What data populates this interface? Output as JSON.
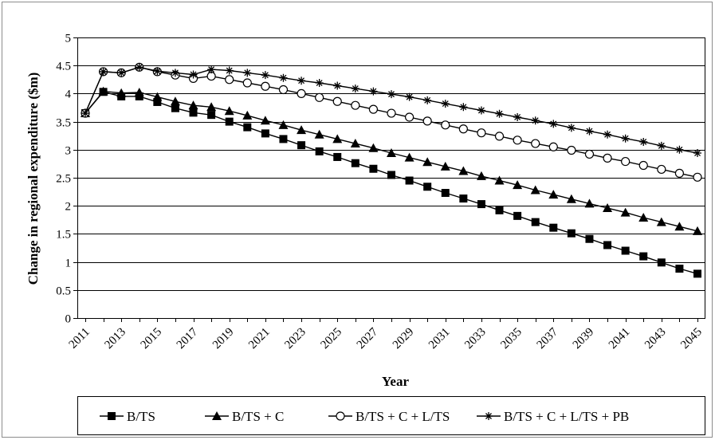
{
  "chart_data": {
    "type": "line",
    "xlabel": "Year",
    "ylabel": "Change in regional expenditure ($m)",
    "ylim": [
      0,
      5
    ],
    "yticks": [
      "0",
      "0.5",
      "1",
      "1.5",
      "2",
      "2.5",
      "3",
      "3.5",
      "4",
      "4.5",
      "5"
    ],
    "xtick_labels": [
      "2011",
      "2013",
      "2015",
      "2017",
      "2019",
      "2021",
      "2023",
      "2025",
      "2027",
      "2029",
      "2031",
      "2033",
      "2035",
      "2037",
      "2039",
      "2041",
      "2043",
      "2045"
    ],
    "grid": "horizontal",
    "legend_position": "bottom",
    "x": [
      2011,
      2012,
      2013,
      2014,
      2015,
      2016,
      2017,
      2018,
      2019,
      2020,
      2021,
      2022,
      2023,
      2024,
      2025,
      2026,
      2027,
      2028,
      2029,
      2030,
      2031,
      2032,
      2033,
      2034,
      2035,
      2036,
      2037,
      2038,
      2039,
      2040,
      2041,
      2042,
      2043,
      2044,
      2045
    ],
    "series": [
      {
        "name": "B/TS",
        "marker": "filled-square",
        "values": [
          3.65,
          4.03,
          3.95,
          3.95,
          3.85,
          3.74,
          3.66,
          3.62,
          3.5,
          3.4,
          3.29,
          3.19,
          3.08,
          2.97,
          2.87,
          2.76,
          2.66,
          2.55,
          2.45,
          2.34,
          2.23,
          2.13,
          2.03,
          1.92,
          1.82,
          1.71,
          1.61,
          1.51,
          1.41,
          1.3,
          1.2,
          1.1,
          0.99,
          0.88,
          0.79
        ]
      },
      {
        "name": "B/TS + C",
        "marker": "filled-triangle",
        "values": [
          3.65,
          4.04,
          4.01,
          4.02,
          3.94,
          3.86,
          3.79,
          3.76,
          3.69,
          3.61,
          3.52,
          3.44,
          3.35,
          3.27,
          3.19,
          3.11,
          3.03,
          2.94,
          2.86,
          2.78,
          2.7,
          2.62,
          2.53,
          2.45,
          2.37,
          2.28,
          2.2,
          2.12,
          2.04,
          1.96,
          1.88,
          1.79,
          1.71,
          1.63,
          1.55
        ]
      },
      {
        "name": "B/TS + C + L/TS",
        "marker": "open-circle",
        "values": [
          3.65,
          4.39,
          4.37,
          4.47,
          4.39,
          4.33,
          4.27,
          4.31,
          4.25,
          4.19,
          4.13,
          4.07,
          4.0,
          3.93,
          3.86,
          3.79,
          3.72,
          3.65,
          3.58,
          3.51,
          3.44,
          3.37,
          3.3,
          3.24,
          3.17,
          3.11,
          3.05,
          2.99,
          2.92,
          2.85,
          2.79,
          2.72,
          2.65,
          2.58,
          2.51
        ]
      },
      {
        "name": "B/TS + C + L/TS + PB",
        "marker": "asterisk",
        "values": [
          3.65,
          4.39,
          4.37,
          4.47,
          4.4,
          4.37,
          4.34,
          4.43,
          4.41,
          4.37,
          4.33,
          4.28,
          4.23,
          4.19,
          4.14,
          4.09,
          4.04,
          3.99,
          3.94,
          3.88,
          3.82,
          3.76,
          3.7,
          3.64,
          3.58,
          3.52,
          3.46,
          3.39,
          3.33,
          3.27,
          3.2,
          3.14,
          3.07,
          3.0,
          2.94
        ]
      }
    ]
  }
}
